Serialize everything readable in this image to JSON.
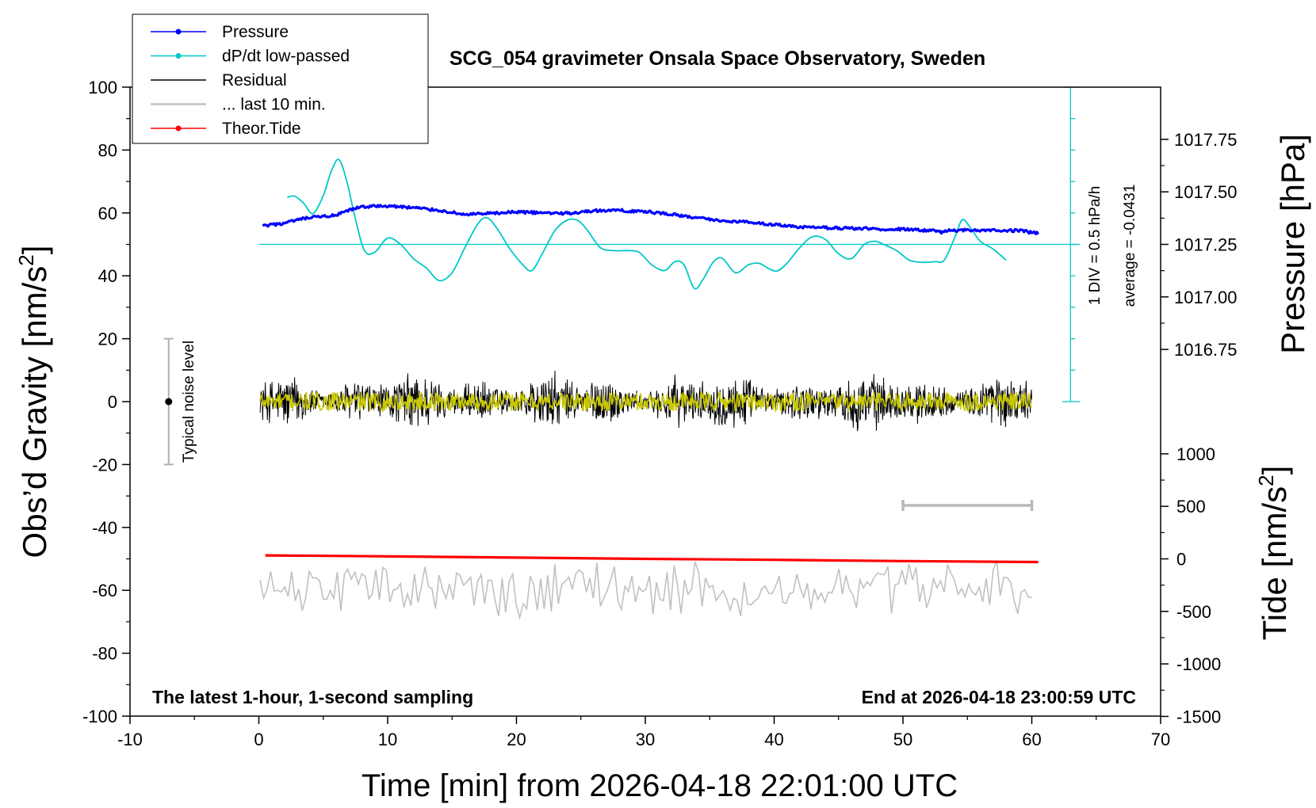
{
  "chart_data": {
    "type": "line",
    "title": "SCG_054 gravimeter Onsala Space Observatory, Sweden",
    "xlabel": "Time [min] from 2026-04-18 22:01:00 UTC",
    "ylabel_left": "Obs’d Gravity [nm/s",
    "ylabel_left_sup": "2",
    "ylabel_left_end": "]",
    "ylabel_right_pressure": "Pressure [hPa]",
    "ylabel_right_tide": "Tide [nm/s",
    "ylabel_right_tide_sup": "2",
    "ylabel_right_tide_end": "]",
    "xlim": [
      -10,
      70
    ],
    "ylim": [
      -100,
      100
    ],
    "x_ticks": [
      "-10",
      "0",
      "10",
      "20",
      "30",
      "40",
      "50",
      "60",
      "70"
    ],
    "y_ticks": [
      "-100",
      "-80",
      "-60",
      "-40",
      "-20",
      "0",
      "20",
      "40",
      "60",
      "80",
      "100"
    ],
    "pressure_ticks": [
      "1016.75",
      "1017.00",
      "1017.25",
      "1017.50",
      "1017.75"
    ],
    "tide_ticks": [
      "-1500",
      "-1000",
      "-500",
      "0",
      "500",
      "1000"
    ],
    "note_left": "The latest 1-hour, 1-second sampling",
    "note_right": "End at 2026-04-18 23:00:59 UTC",
    "dpdt_scale_label": "1 DIV = 0.5 hPa/h",
    "dpdt_average_label": "average = -0.0431",
    "noise_label": "Typical noise level",
    "noise_bar": {
      "x": -7,
      "center": 0,
      "half_range": 20
    },
    "last10_bar": {
      "start": 50,
      "end": 60,
      "y": -33
    },
    "legend": [
      {
        "label": "Pressure",
        "color": "#0000ff",
        "marker": true
      },
      {
        "label": "dP/dt low-passed",
        "color": "#00c8c8",
        "marker": true
      },
      {
        "label": "Residual",
        "color": "#000000",
        "marker": false
      },
      {
        "label": "... last 10 min.",
        "color": "#c0c0c0",
        "marker": false
      },
      {
        "label": "Theor.Tide",
        "color": "#ff0000",
        "marker": true
      }
    ],
    "series": [
      {
        "name": "Pressure",
        "color": "#0000ff",
        "x": [
          0.3,
          2,
          3.5,
          5,
          6,
          7,
          8,
          10,
          12,
          14,
          16,
          18,
          20,
          22,
          24,
          26,
          28,
          30,
          32,
          34,
          36,
          38,
          40,
          42,
          44,
          46,
          48,
          50,
          52,
          53,
          53.5,
          55,
          57,
          59,
          60.5
        ],
        "values": [
          55.8,
          56.7,
          58.2,
          58.9,
          59.2,
          60.8,
          62.0,
          62.2,
          61.7,
          60.8,
          59.5,
          59.8,
          60.3,
          60.0,
          59.9,
          60.7,
          60.8,
          60.4,
          59.6,
          58.4,
          57.5,
          57.1,
          56.3,
          55.4,
          55.3,
          55.1,
          54.9,
          54.8,
          54.4,
          53.9,
          54.3,
          54.6,
          54.5,
          54.4,
          53.5
        ]
      },
      {
        "name": "dP/dt low-passed",
        "color": "#00c8c8",
        "x": [
          2.2,
          2.8,
          3.5,
          4.2,
          5.0,
          5.6,
          6.2,
          6.8,
          7.5,
          8.2,
          9.0,
          10.0,
          11.0,
          12.0,
          13.0,
          14.0,
          15.0,
          16.0,
          17.0,
          17.7,
          18.5,
          19.5,
          20.5,
          21.2,
          22.0,
          23.0,
          24.0,
          24.8,
          25.5,
          26.5,
          27.5,
          28.5,
          29.5,
          30.5,
          31.5,
          32.3,
          33.0,
          33.8,
          34.5,
          35.3,
          36.0,
          37.0,
          38.0,
          38.8,
          39.5,
          40.2,
          41.0,
          42.0,
          43.0,
          44.0,
          45.0,
          46.0,
          47.0,
          47.8,
          48.5,
          49.5,
          50.5,
          51.5,
          52.5,
          53.2,
          54.0,
          54.6,
          55.2,
          56.0,
          57.0,
          58.0
        ],
        "values": [
          65.0,
          65.3,
          63.0,
          59.8,
          65.5,
          73.0,
          77.0,
          70.5,
          58.0,
          48.0,
          47.5,
          52.0,
          50.0,
          45.5,
          42.5,
          38.5,
          41.0,
          49.0,
          56.5,
          58.5,
          55.0,
          48.5,
          43.5,
          41.7,
          47.0,
          54.5,
          57.8,
          57.5,
          54.5,
          49.0,
          48.0,
          48.0,
          47.5,
          43.5,
          41.7,
          44.5,
          43.5,
          36.0,
          39.0,
          44.5,
          45.5,
          41.0,
          43.5,
          44.0,
          42.5,
          41.5,
          44.0,
          49.0,
          52.5,
          51.5,
          47.0,
          45.5,
          50.0,
          51.0,
          50.0,
          48.0,
          45.0,
          44.3,
          44.5,
          45.0,
          52.0,
          57.8,
          55.5,
          51.0,
          48.5,
          45.0
        ]
      },
      {
        "name": "Residual",
        "color": "#000000",
        "xrange": [
          0.1,
          60.0
        ],
        "amplitude": 11
      },
      {
        "name": "Residual low-passed",
        "color": "#c8c800",
        "xrange": [
          0.1,
          60.0
        ],
        "amplitude": 3
      },
      {
        "name": "... last 10 min.",
        "color": "#c0c0c0",
        "xrange": [
          0.1,
          60.0
        ],
        "center": -60,
        "amplitude": 10
      },
      {
        "name": "Theor.Tide",
        "color": "#ff0000",
        "x": [
          0.5,
          10,
          20,
          30,
          40,
          50,
          60.5
        ],
        "values": [
          -48.9,
          -49.2,
          -49.6,
          -50.0,
          -50.3,
          -50.7,
          -51.0
        ]
      }
    ]
  }
}
